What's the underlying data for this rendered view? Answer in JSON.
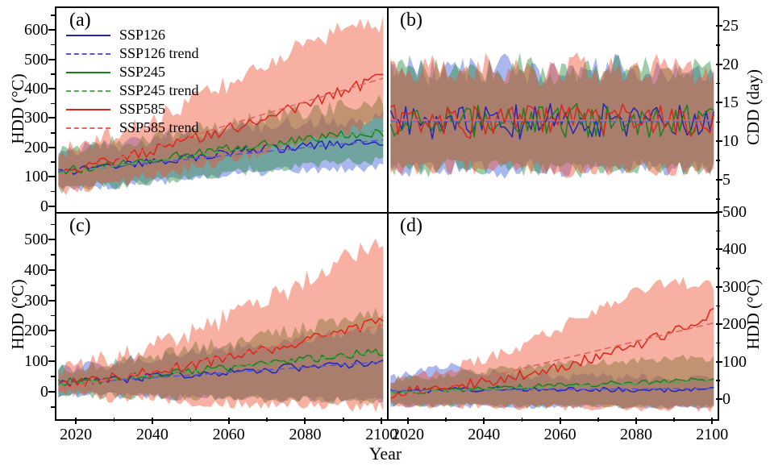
{
  "figure": {
    "background": "#ffffff",
    "frame_color": "#000000"
  },
  "chart_data": {
    "type": "line",
    "x": {
      "label": "Year",
      "ticks": [
        2020,
        2040,
        2060,
        2080,
        2100
      ],
      "minor_ticks": [
        2030,
        2050,
        2070,
        2090
      ],
      "range": [
        2014.5,
        2101
      ],
      "sample_years": [
        2015,
        2020,
        2025,
        2030,
        2035,
        2040,
        2045,
        2050,
        2055,
        2060,
        2065,
        2070,
        2075,
        2080,
        2085,
        2090,
        2095,
        2100
      ]
    },
    "legend": [
      {
        "label": "SSP126",
        "style": "solid",
        "color": "#2424b4"
      },
      {
        "label": "SSP126 trend",
        "style": "dashed",
        "color": "#5959cf"
      },
      {
        "label": "SSP245",
        "style": "solid",
        "color": "#1b7f1b"
      },
      {
        "label": "SSP245 trend",
        "style": "dashed",
        "color": "#55a855"
      },
      {
        "label": "SSP585",
        "style": "solid",
        "color": "#dc251b"
      },
      {
        "label": "SSP585 trend",
        "style": "dashed",
        "color": "#e2655e"
      }
    ],
    "colors": {
      "line": {
        "SSP126": "#2424b4",
        "SSP245": "#1b7f1b",
        "SSP585": "#dc251b"
      },
      "trend": {
        "SSP126": "#5959cf",
        "SSP245": "#55a855",
        "SSP585": "#e2655e"
      },
      "band": {
        "SSP126": "rgba(68,98,222,0.45)",
        "SSP245": "rgba(42,140,60,0.45)",
        "SSP585": "rgba(238,80,48,0.45)"
      }
    },
    "panels": [
      {
        "id": "a",
        "label": "(a)",
        "ylabel": "HDD (°C)",
        "axis_side": "left",
        "yticks": [
          0,
          100,
          200,
          300,
          400,
          500,
          600
        ],
        "y_minor_step": 50,
        "ylim": [
          -15,
          680
        ],
        "show_x_labels": false,
        "show_legend": true,
        "series": [
          {
            "name": "SSP126",
            "jitter": 16,
            "band_jitter": 26,
            "trend": [
              121,
              231
            ],
            "mean": [
              125,
              128,
              134,
              140,
              148,
              155,
              163,
              172,
              180,
              188,
              195,
              200,
              205,
              210,
              213,
              217,
              221,
              224
            ],
            "band_low": [
              62,
              66,
              70,
              75,
              80,
              86,
              92,
              99,
              105,
              111,
              116,
              121,
              125,
              128,
              130,
              132,
              134,
              136
            ],
            "band_high": [
              192,
              198,
              206,
              214,
              223,
              232,
              241,
              251,
              259,
              267,
              274,
              281,
              287,
              292,
              296,
              300,
              304,
              308
            ]
          },
          {
            "name": "SSP245",
            "jitter": 16,
            "band_jitter": 28,
            "trend": [
              117,
              263
            ],
            "mean": [
              124,
              130,
              138,
              147,
              156,
              165,
              175,
              184,
              193,
              202,
              210,
              218,
              226,
              233,
              240,
              247,
              253,
              258
            ],
            "band_low": [
              60,
              65,
              71,
              78,
              85,
              92,
              99,
              107,
              114,
              121,
              127,
              134,
              140,
              146,
              151,
              156,
              160,
              164
            ],
            "band_high": [
              194,
              202,
              212,
              223,
              234,
              245,
              257,
              268,
              279,
              290,
              300,
              310,
              320,
              329,
              337,
              345,
              352,
              358
            ]
          },
          {
            "name": "SSP585",
            "jitter": 20,
            "band_jitter": 34,
            "trend": [
              107,
              441
            ],
            "mean": [
              121,
              132,
              146,
              161,
              177,
              194,
              212,
              231,
              250,
              270,
              290,
              311,
              332,
              354,
              376,
              399,
              422,
              446
            ],
            "band_low": [
              58,
              66,
              76,
              87,
              98,
              110,
              123,
              136,
              150,
              164,
              179,
              194,
              210,
              226,
              242,
              259,
              276,
              293
            ],
            "band_high": [
              190,
              208,
              230,
              254,
              279,
              305,
              333,
              362,
              392,
              423,
              455,
              488,
              522,
              557,
              585,
              608,
              622,
              628
            ]
          }
        ]
      },
      {
        "id": "b",
        "label": "(b)",
        "ylabel": "CDD (day)",
        "axis_side": "right",
        "yticks": [
          5,
          10,
          15,
          20,
          25
        ],
        "y_minor_step": 2.5,
        "ylim": [
          1,
          27.5
        ],
        "show_x_labels": false,
        "show_legend": false,
        "series": [
          {
            "name": "SSP126",
            "jitter": 2.2,
            "band_jitter": 1.8,
            "trend": [
              12.8,
              12.8
            ],
            "mean": [
              12.8,
              13.0,
              12.6,
              13.1,
              12.7,
              12.9,
              13.2,
              12.5,
              12.8,
              13.1,
              12.6,
              12.9,
              13.2,
              12.6,
              12.8,
              13.0,
              12.7,
              12.9
            ],
            "band_low": [
              6.8,
              6.5,
              7.0,
              6.3,
              6.9,
              6.6,
              6.2,
              7.1,
              6.7,
              6.4,
              6.9,
              6.6,
              6.3,
              7.0,
              6.7,
              6.5,
              6.8,
              6.6
            ],
            "band_high": [
              19.2,
              19.8,
              18.9,
              20.1,
              19.4,
              19.7,
              20.3,
              18.8,
              19.3,
              19.9,
              19.0,
              19.6,
              20.2,
              18.9,
              19.4,
              19.8,
              19.2,
              19.5
            ]
          },
          {
            "name": "SSP245",
            "jitter": 2.2,
            "band_jitter": 1.8,
            "trend": [
              12.9,
              12.9
            ],
            "mean": [
              12.9,
              12.7,
              13.1,
              12.6,
              13.0,
              12.8,
              12.5,
              13.2,
              12.8,
              12.6,
              13.1,
              12.7,
              12.9,
              13.2,
              12.6,
              12.9,
              13.1,
              12.8
            ],
            "band_low": [
              6.5,
              6.9,
              6.3,
              7.0,
              6.6,
              6.8,
              7.1,
              6.4,
              6.7,
              7.0,
              6.4,
              6.8,
              6.5,
              6.9,
              6.6,
              6.4,
              6.9,
              6.7
            ],
            "band_high": [
              19.6,
              19.1,
              20.0,
              18.9,
              19.5,
              19.2,
              18.8,
              20.2,
              19.4,
              19.0,
              19.8,
              19.3,
              19.7,
              20.1,
              19.0,
              19.5,
              19.9,
              19.3
            ]
          },
          {
            "name": "SSP585",
            "jitter": 2.2,
            "band_jitter": 1.8,
            "trend": [
              13.0,
              12.9
            ],
            "mean": [
              13.0,
              12.7,
              13.2,
              12.8,
              12.5,
              13.1,
              12.8,
              13.0,
              12.6,
              12.9,
              13.2,
              12.6,
              13.0,
              12.7,
              13.1,
              12.8,
              12.6,
              13.0
            ],
            "band_low": [
              6.6,
              7.0,
              6.4,
              6.8,
              7.1,
              6.5,
              6.9,
              6.6,
              7.0,
              6.5,
              6.2,
              6.9,
              6.5,
              7.0,
              6.4,
              6.8,
              7.0,
              6.6
            ],
            "band_high": [
              19.4,
              18.9,
              20.0,
              19.3,
              18.8,
              19.9,
              19.2,
              19.6,
              18.9,
              19.5,
              20.1,
              19.0,
              19.7,
              19.1,
              19.9,
              19.4,
              18.9,
              19.6
            ]
          }
        ]
      },
      {
        "id": "c",
        "label": "(c)",
        "ylabel": "HDD (°C)",
        "axis_side": "left",
        "yticks": [
          0,
          100,
          200,
          300,
          400,
          500
        ],
        "y_minor_step": 50,
        "ylim": [
          -80,
          590
        ],
        "show_x_labels": true,
        "show_legend": false,
        "series": [
          {
            "name": "SSP126",
            "jitter": 13,
            "band_jitter": 22,
            "trend": [
              30,
              103
            ],
            "mean": [
              34,
              37,
              41,
              45,
              49,
              54,
              58,
              63,
              67,
              71,
              75,
              79,
              83,
              87,
              91,
              95,
              99,
              105
            ],
            "band_low": [
              -2,
              -4,
              -6,
              -8,
              -10,
              -11,
              -12,
              -13,
              -14,
              -15,
              -16,
              -17,
              -18,
              -19,
              -20,
              -21,
              -22,
              -23
            ],
            "band_high": [
              74,
              80,
              88,
              97,
              106,
              115,
              124,
              133,
              141,
              150,
              158,
              166,
              174,
              183,
              190,
              198,
              207,
              216
            ]
          },
          {
            "name": "SSP245",
            "jitter": 14,
            "band_jitter": 24,
            "trend": [
              28,
              136
            ],
            "mean": [
              34,
              39,
              44,
              49,
              55,
              61,
              67,
              73,
              79,
              85,
              91,
              97,
              103,
              110,
              117,
              124,
              131,
              139
            ],
            "band_low": [
              -3,
              -5,
              -7,
              -9,
              -11,
              -13,
              -14,
              -16,
              -17,
              -18,
              -19,
              -20,
              -21,
              -22,
              -23,
              -24,
              -25,
              -26
            ],
            "band_high": [
              76,
              84,
              93,
              103,
              113,
              124,
              135,
              147,
              158,
              169,
              180,
              192,
              203,
              215,
              226,
              238,
              250,
              262
            ]
          },
          {
            "name": "SSP585",
            "jitter": 17,
            "band_jitter": 36,
            "trend": [
              12,
              224
            ],
            "mean": [
              32,
              37,
              44,
              52,
              61,
              71,
              82,
              93,
              105,
              118,
              131,
              145,
              159,
              174,
              189,
              204,
              220,
              236
            ],
            "band_low": [
              -4,
              -6,
              -9,
              -12,
              -15,
              -18,
              -20,
              -23,
              -25,
              -28,
              -30,
              -32,
              -34,
              -36,
              -38,
              -40,
              -41,
              -42
            ],
            "band_high": [
              74,
              86,
              101,
              118,
              136,
              156,
              178,
              201,
              226,
              252,
              280,
              309,
              339,
              371,
              404,
              438,
              474,
              512
            ]
          }
        ]
      },
      {
        "id": "d",
        "label": "(d)",
        "ylabel": "HDD (°C)",
        "axis_side": "right",
        "yticks": [
          0,
          100,
          200,
          300,
          400,
          500
        ],
        "y_minor_step": 50,
        "ylim": [
          -45,
          500
        ],
        "show_x_labels": true,
        "show_legend": false,
        "series": [
          {
            "name": "SSP126",
            "jitter": 7,
            "band_jitter": 12,
            "trend": [
              27,
              33
            ],
            "mean": [
              26,
              27,
              28,
              29,
              30,
              30,
              31,
              31,
              31,
              31,
              31,
              31,
              30,
              30,
              30,
              29,
              29,
              30
            ],
            "band_low": [
              -12,
              -13,
              -13,
              -14,
              -14,
              -15,
              -15,
              -15,
              -15,
              -16,
              -16,
              -16,
              -16,
              -16,
              -17,
              -17,
              -17,
              -17
            ],
            "band_high": [
              62,
              70,
              82,
              94,
              86,
              78,
              72,
              69,
              67,
              66,
              64,
              63,
              62,
              61,
              60,
              59,
              58,
              58
            ]
          },
          {
            "name": "SSP245",
            "jitter": 7,
            "band_jitter": 11,
            "trend": [
              22,
              53
            ],
            "mean": [
              23,
              25,
              27,
              29,
              31,
              33,
              35,
              37,
              39,
              41,
              43,
              45,
              47,
              49,
              51,
              52,
              54,
              55
            ],
            "band_low": [
              -10,
              -11,
              -11,
              -12,
              -12,
              -13,
              -13,
              -13,
              -14,
              -14,
              -14,
              -15,
              -15,
              -15,
              -15,
              -16,
              -16,
              -16
            ],
            "band_high": [
              56,
              60,
              65,
              70,
              75,
              80,
              84,
              89,
              93,
              97,
              100,
              103,
              106,
              108,
              110,
              112,
              113,
              115
            ]
          },
          {
            "name": "SSP585",
            "jitter": 14,
            "band_jitter": 18,
            "trend": [
              3,
              208
            ],
            "mean": [
              21,
              25,
              30,
              36,
              43,
              51,
              60,
              70,
              81,
              93,
              106,
              120,
              135,
              151,
              168,
              186,
              205,
              238
            ],
            "band_low": [
              -8,
              -9,
              -10,
              -11,
              -12,
              -13,
              -14,
              -15,
              -16,
              -17,
              -18,
              -19,
              -20,
              -20,
              -21,
              -21,
              -22,
              -22
            ],
            "band_high": [
              52,
              60,
              70,
              82,
              96,
              112,
              130,
              150,
              172,
              196,
              222,
              248,
              272,
              292,
              306,
              316,
              312,
              308
            ]
          }
        ]
      }
    ]
  }
}
